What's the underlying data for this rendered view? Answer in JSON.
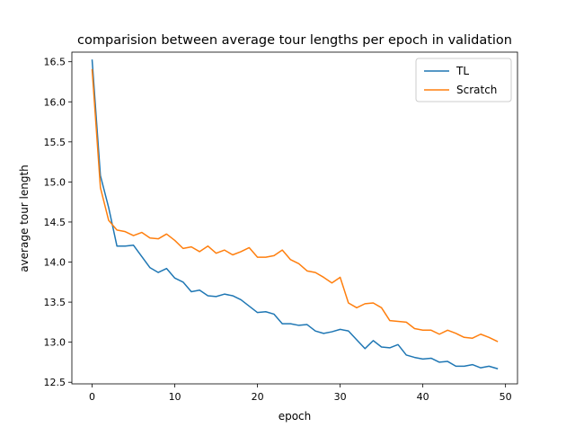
{
  "chart_data": {
    "type": "line",
    "title": "comparision between average tour lengths per epoch in validation",
    "xlabel": "epoch",
    "ylabel": "average tour length",
    "xlim": [
      -2.45,
      51.45
    ],
    "ylim": [
      12.48,
      16.62
    ],
    "xticks": [
      0,
      10,
      20,
      30,
      40,
      50
    ],
    "yticks": [
      12.5,
      13.0,
      13.5,
      14.0,
      14.5,
      15.0,
      15.5,
      16.0,
      16.5
    ],
    "xtick_labels": [
      "0",
      "10",
      "20",
      "30",
      "40",
      "50"
    ],
    "ytick_labels": [
      "12.5",
      "13.0",
      "13.5",
      "14.0",
      "14.5",
      "15.0",
      "15.5",
      "16.0",
      "16.5"
    ],
    "grid": false,
    "legend_position": "top-right",
    "x": [
      0,
      1,
      2,
      3,
      4,
      5,
      6,
      7,
      8,
      9,
      10,
      11,
      12,
      13,
      14,
      15,
      16,
      17,
      18,
      19,
      20,
      21,
      22,
      23,
      24,
      25,
      26,
      27,
      28,
      29,
      30,
      31,
      32,
      33,
      34,
      35,
      36,
      37,
      38,
      39,
      40,
      41,
      42,
      43,
      44,
      45,
      46,
      47,
      48,
      49
    ],
    "series": [
      {
        "name": "TL",
        "color": "#1f77b4",
        "values": [
          16.52,
          15.08,
          14.68,
          14.2,
          14.2,
          14.21,
          14.07,
          13.93,
          13.87,
          13.92,
          13.8,
          13.75,
          13.63,
          13.65,
          13.58,
          13.57,
          13.6,
          13.58,
          13.53,
          13.45,
          13.37,
          13.38,
          13.35,
          13.23,
          13.23,
          13.21,
          13.22,
          13.14,
          13.11,
          13.13,
          13.16,
          13.14,
          13.03,
          12.92,
          13.02,
          12.94,
          12.93,
          12.97,
          12.84,
          12.81,
          12.79,
          12.8,
          12.75,
          12.76,
          12.7,
          12.7,
          12.72,
          12.68,
          12.7,
          12.67
        ]
      },
      {
        "name": "Scratch",
        "color": "#ff7f0e",
        "values": [
          16.4,
          14.93,
          14.52,
          14.4,
          14.38,
          14.33,
          14.37,
          14.3,
          14.29,
          14.35,
          14.27,
          14.17,
          14.19,
          14.13,
          14.2,
          14.11,
          14.15,
          14.09,
          14.13,
          14.18,
          14.06,
          14.06,
          14.08,
          14.15,
          14.03,
          13.98,
          13.89,
          13.87,
          13.81,
          13.74,
          13.81,
          13.49,
          13.43,
          13.48,
          13.49,
          13.43,
          13.27,
          13.26,
          13.25,
          13.17,
          13.15,
          13.15,
          13.1,
          13.15,
          13.11,
          13.06,
          13.05,
          13.1,
          13.06,
          13.01
        ]
      }
    ]
  }
}
